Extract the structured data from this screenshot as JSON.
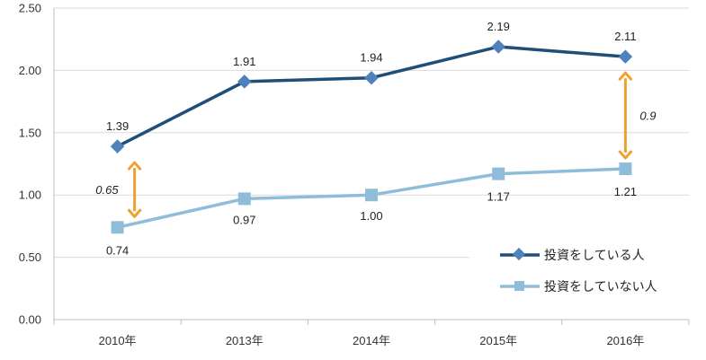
{
  "chart_data": {
    "type": "line",
    "categories": [
      "2010年",
      "2013年",
      "2014年",
      "2015年",
      "2016年"
    ],
    "series": [
      {
        "name": "投資をしている人",
        "values": [
          1.39,
          1.91,
          1.94,
          2.19,
          2.11
        ],
        "labels": [
          "1.39",
          "1.91",
          "1.94",
          "2.19",
          "2.11"
        ],
        "color": "#1f4e79",
        "marker_color": "#4f81bd",
        "marker": "diamond"
      },
      {
        "name": "投資をしていない人",
        "values": [
          0.74,
          0.97,
          1.0,
          1.17,
          1.21
        ],
        "labels": [
          "0.74",
          "0.97",
          "1.00",
          "1.17",
          "1.21"
        ],
        "color": "#8fbcd9",
        "marker_color": "#8fbcd9",
        "marker": "square"
      }
    ],
    "ylim": [
      0,
      2.5
    ],
    "yticks": [
      "0.00",
      "0.50",
      "1.00",
      "1.50",
      "2.00",
      "2.50"
    ],
    "ytick_values": [
      0,
      0.5,
      1.0,
      1.5,
      2.0,
      2.5
    ],
    "grid": true,
    "legend_position": "bottom-right",
    "annotations": [
      {
        "text": "0.65",
        "category_index": 0,
        "from": 0.74,
        "to": 1.39,
        "color": "#f0a030"
      },
      {
        "text": "0.9",
        "category_index": 4,
        "from": 1.21,
        "to": 2.11,
        "color": "#f0a030"
      }
    ]
  }
}
